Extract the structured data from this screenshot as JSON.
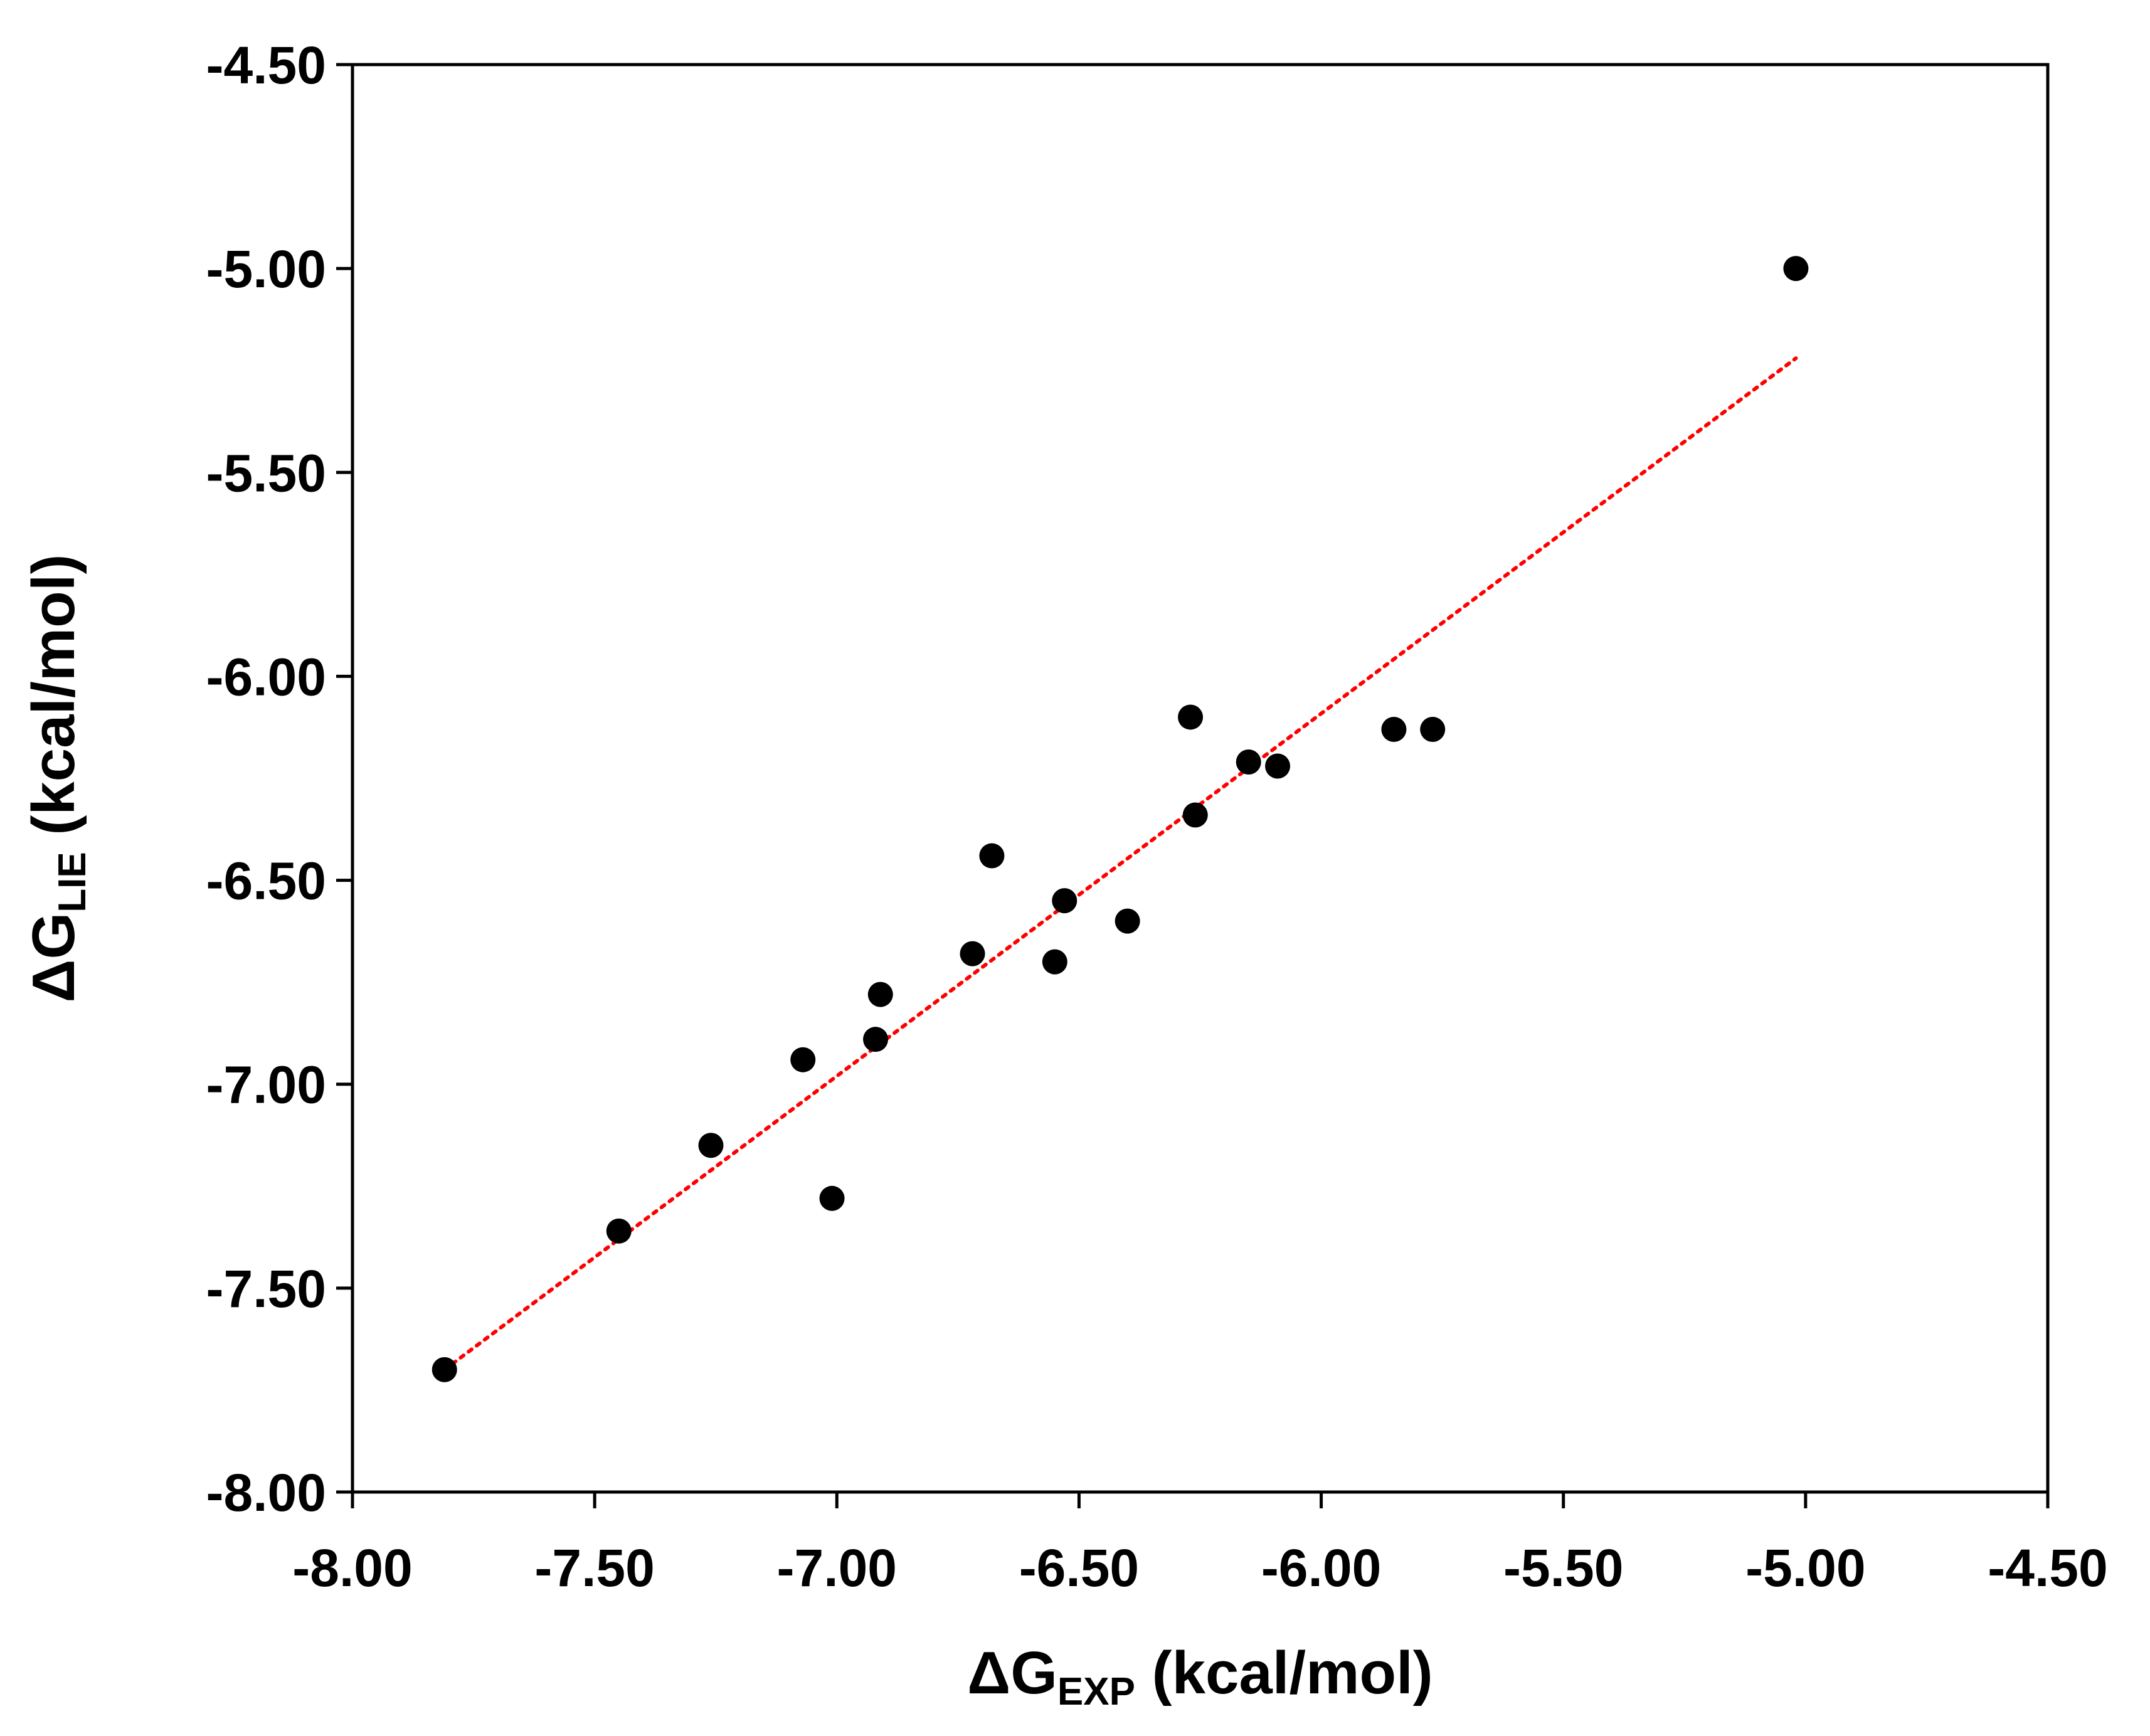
{
  "chart_data": {
    "type": "scatter",
    "title": "",
    "xlabel": {
      "prefix": "ΔG",
      "subscript": "EXP",
      "suffix": " (kcal/mol)"
    },
    "ylabel": {
      "prefix": "ΔG",
      "subscript": "LIE",
      "suffix": " (kcal/mol)"
    },
    "xlim": [
      -8.0,
      -4.5
    ],
    "ylim": [
      -8.0,
      -4.5
    ],
    "x_ticks": [
      "-8.00",
      "-7.50",
      "-7.00",
      "-6.50",
      "-6.00",
      "-5.50",
      "-5.00",
      "-4.50"
    ],
    "y_ticks": [
      "-8.00",
      "-7.50",
      "-7.00",
      "-6.50",
      "-6.00",
      "-5.50",
      "-5.00",
      "-4.50"
    ],
    "x_tick_values": [
      -8.0,
      -7.5,
      -7.0,
      -6.5,
      -6.0,
      -5.5,
      -5.0,
      -4.5
    ],
    "y_tick_values": [
      -8.0,
      -7.5,
      -7.0,
      -6.5,
      -6.0,
      -5.5,
      -5.0,
      -4.5
    ],
    "grid": false,
    "legend": "none",
    "series": [
      {
        "points": [
          {
            "x": -7.81,
            "y": -7.7
          },
          {
            "x": -7.45,
            "y": -7.36
          },
          {
            "x": -7.26,
            "y": -7.15
          },
          {
            "x": -7.07,
            "y": -6.94
          },
          {
            "x": -7.01,
            "y": -7.28
          },
          {
            "x": -6.92,
            "y": -6.89
          },
          {
            "x": -6.91,
            "y": -6.78
          },
          {
            "x": -6.72,
            "y": -6.68
          },
          {
            "x": -6.68,
            "y": -6.44
          },
          {
            "x": -6.55,
            "y": -6.7
          },
          {
            "x": -6.53,
            "y": -6.55
          },
          {
            "x": -6.4,
            "y": -6.6
          },
          {
            "x": -6.27,
            "y": -6.1
          },
          {
            "x": -6.26,
            "y": -6.34
          },
          {
            "x": -6.15,
            "y": -6.21
          },
          {
            "x": -6.09,
            "y": -6.22
          },
          {
            "x": -5.85,
            "y": -6.13
          },
          {
            "x": -5.77,
            "y": -6.13
          },
          {
            "x": -5.02,
            "y": -5.0
          }
        ],
        "color": "#000000"
      }
    ],
    "trendline": {
      "style": "dotted",
      "color": "#ff0000",
      "from": {
        "x": -7.81,
        "y": -7.7
      },
      "to": {
        "x": -5.02,
        "y": -5.22
      }
    }
  }
}
